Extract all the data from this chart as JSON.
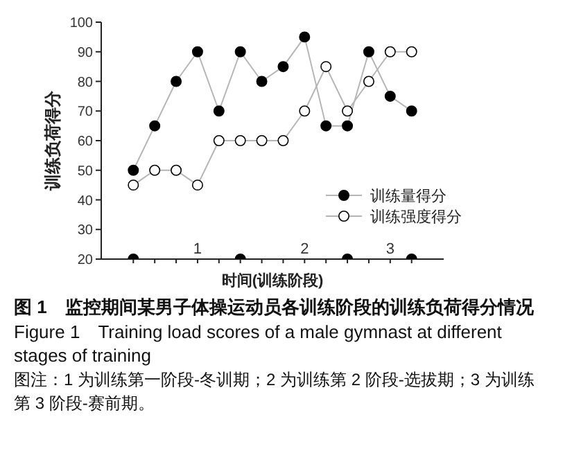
{
  "chart_data": {
    "type": "line",
    "title": "图 1　监控期间某男子体操运动员各训练阶段的训练负荷得分情况",
    "subtitle": "Figure 1　Training load scores of a male gymnast at different stages of training",
    "ylabel": "训练负荷得分",
    "xlabel": "时间(训练阶段)",
    "annotations": [
      "图注：1 为训练第一阶段-冬训期；2 为训练第 2 阶段-选拔期；3 为训练第 3 阶段-赛前期。"
    ],
    "categories": [
      null,
      null,
      null,
      "1",
      null,
      null,
      null,
      null,
      "2",
      null,
      null,
      null,
      "3",
      null
    ],
    "ylim": [
      20,
      100
    ],
    "yticks": [
      20,
      30,
      40,
      50,
      60,
      70,
      80,
      90,
      100
    ],
    "marker": "circle",
    "legend": "right",
    "series": [
      {
        "name": "训练量得分",
        "color": "#000000",
        "values": [
          50,
          65,
          80,
          90,
          70,
          90,
          80,
          85,
          95,
          65,
          65,
          90,
          75,
          70
        ]
      },
      {
        "name": "训练强度得分",
        "color": "#ffffff",
        "values": [
          45,
          50,
          50,
          45,
          60,
          60,
          60,
          60,
          70,
          85,
          70,
          80,
          90,
          90
        ]
      },
      {
        "type": "scatter",
        "color": "#000000",
        "values": [
          20,
          null,
          null,
          null,
          null,
          20,
          null,
          null,
          null,
          null,
          20,
          null,
          null,
          20
        ]
      }
    ]
  }
}
